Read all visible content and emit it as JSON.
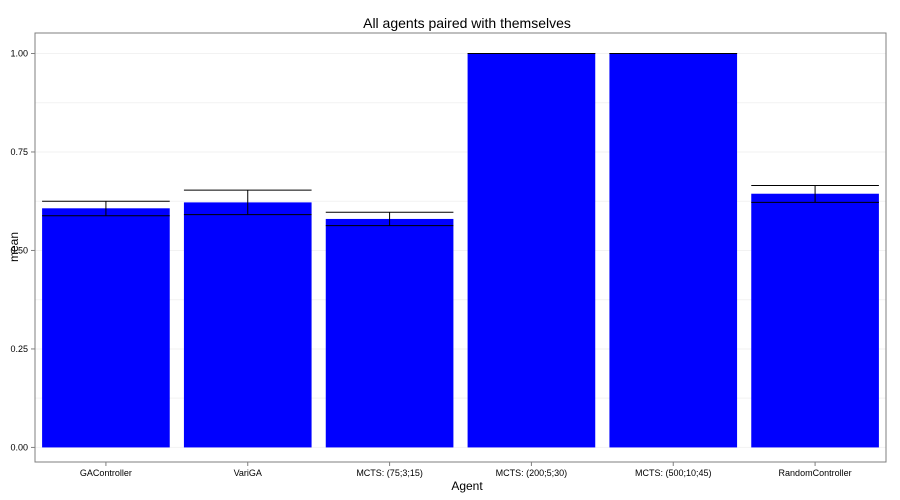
{
  "chart_data": {
    "type": "bar",
    "title": "All agents paired with themselves",
    "xlabel": "Agent",
    "ylabel": "mean",
    "categories": [
      "GAController",
      "VariGA",
      "MCTS: (75;3;15)",
      "MCTS: (200;5;30)",
      "MCTS: (500;10;45)",
      "RandomController"
    ],
    "values": [
      0.607,
      0.622,
      0.58,
      1.0,
      1.0,
      0.644
    ],
    "error_low": [
      0.588,
      0.591,
      0.563,
      1.0,
      1.0,
      0.622
    ],
    "error_high": [
      0.625,
      0.653,
      0.597,
      1.0,
      1.0,
      0.665
    ],
    "ylim": [
      -0.037,
      1.052
    ],
    "yticks": [
      0.0,
      0.25,
      0.5,
      0.75,
      1.0
    ],
    "ytick_labels": [
      "0.00",
      "0.25",
      "0.50",
      "0.75",
      "1.00"
    ],
    "grid": true,
    "colors": {
      "bar": "#0000ff",
      "error": "#000000",
      "grid": "#f2f2f2",
      "frame": "#7f7f7f",
      "background": "#ffffff"
    }
  }
}
